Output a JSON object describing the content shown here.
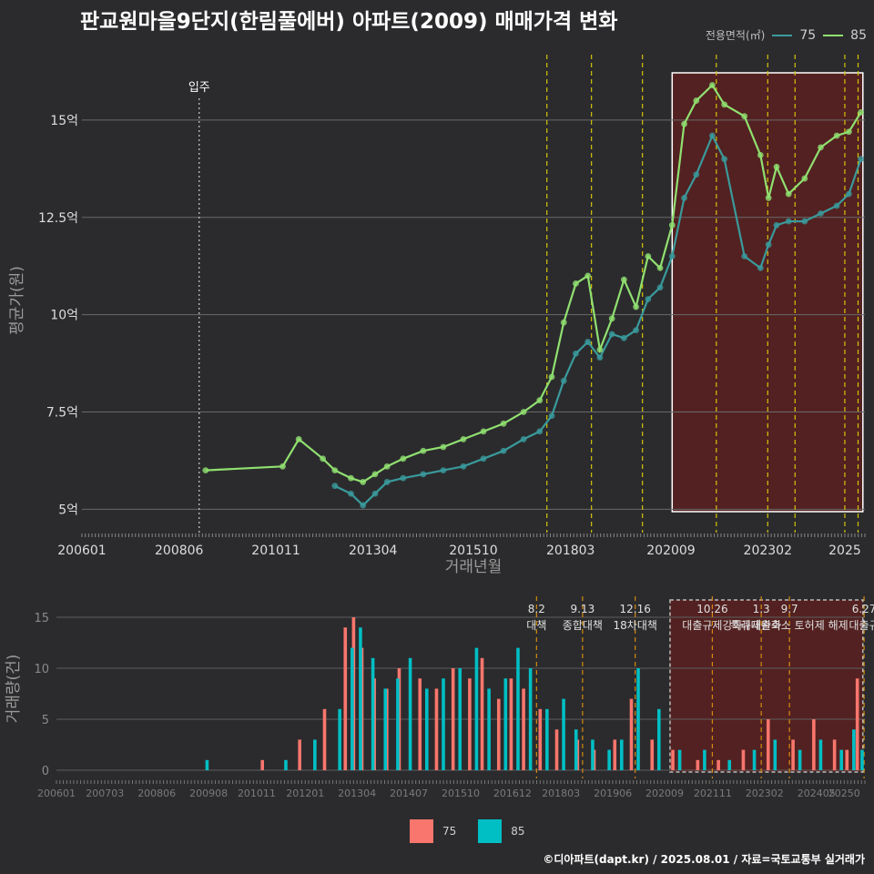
{
  "title": "판교원마을9단지(한림풀에버) 아파트(2009) 매매가격 변화",
  "credit": "©디아파트(dapt.kr) / 2025.08.01 / 자료=국토교통부 실거래가",
  "legend_top": {
    "title": "전용면적(㎡)",
    "items": [
      {
        "label": "75",
        "color": "#3a9a9c"
      },
      {
        "label": "85",
        "color": "#90e070"
      }
    ]
  },
  "legend_bottom": {
    "items": [
      {
        "label": "75",
        "color": "#f8766d"
      },
      {
        "label": "85",
        "color": "#00bfc4"
      }
    ]
  },
  "chart_data": [
    {
      "type": "line",
      "title": "판교원마을9단지(한림풀에버) 아파트(2009) 매매가격 변화",
      "xlabel": "거래년월",
      "ylabel": "평균가(원)",
      "xlim": [
        2006.0,
        2025.5
      ],
      "ylim": [
        4.4,
        16.8
      ],
      "yticks": [
        5,
        7.5,
        10,
        12.5,
        15
      ],
      "ytick_labels": [
        "5억",
        "7.5억",
        "10억",
        "12.5억",
        "15억"
      ],
      "xticks": [
        2006.0,
        2008.42,
        2010.83,
        2013.25,
        2015.75,
        2018.17,
        2020.67,
        2023.08,
        2025.0
      ],
      "xtick_labels": [
        "200601",
        "200806",
        "201011",
        "201304",
        "201510",
        "201803",
        "202009",
        "202302",
        "2025"
      ],
      "vlines_policy": [
        2017.58,
        2018.69,
        2019.96,
        2021.8,
        2023.08,
        2023.76,
        2025.0,
        2025.33
      ],
      "vline_occupancy": {
        "x": 2008.92,
        "label": "입주"
      },
      "highlight_x": [
        2020.7,
        2025.45
      ],
      "series": [
        {
          "name": "85",
          "color": "#90e070",
          "x": [
            2009.08,
            2011.0,
            2011.4,
            2012.0,
            2012.3,
            2012.7,
            2013.0,
            2013.3,
            2013.6,
            2014.0,
            2014.5,
            2015.0,
            2015.5,
            2016.0,
            2016.5,
            2017.0,
            2017.4,
            2017.7,
            2018.0,
            2018.3,
            2018.6,
            2018.9,
            2019.2,
            2019.5,
            2019.8,
            2020.1,
            2020.4,
            2020.7,
            2021.0,
            2021.3,
            2021.7,
            2022.0,
            2022.5,
            2022.9,
            2023.1,
            2023.3,
            2023.6,
            2024.0,
            2024.4,
            2024.8,
            2025.1,
            2025.4
          ],
          "y": [
            6.0,
            6.1,
            6.8,
            6.3,
            6.0,
            5.8,
            5.7,
            5.9,
            6.1,
            6.3,
            6.5,
            6.6,
            6.8,
            7.0,
            7.2,
            7.5,
            7.8,
            8.4,
            9.8,
            10.8,
            11.0,
            9.1,
            9.9,
            10.9,
            10.2,
            11.5,
            11.2,
            12.3,
            14.9,
            15.5,
            15.9,
            15.4,
            15.1,
            14.1,
            13.0,
            13.8,
            13.1,
            13.5,
            14.3,
            14.6,
            14.7,
            15.2
          ]
        },
        {
          "name": "75",
          "color": "#3a9a9c",
          "x": [
            2012.3,
            2012.7,
            2013.0,
            2013.3,
            2013.6,
            2014.0,
            2014.5,
            2015.0,
            2015.5,
            2016.0,
            2016.5,
            2017.0,
            2017.4,
            2017.7,
            2018.0,
            2018.3,
            2018.6,
            2018.9,
            2019.2,
            2019.5,
            2019.8,
            2020.1,
            2020.4,
            2020.7,
            2021.0,
            2021.3,
            2021.7,
            2022.0,
            2022.5,
            2022.9,
            2023.1,
            2023.3,
            2023.6,
            2024.0,
            2024.4,
            2024.8,
            2025.1,
            2025.4
          ],
          "y": [
            5.6,
            5.4,
            5.1,
            5.4,
            5.7,
            5.8,
            5.9,
            6.0,
            6.1,
            6.3,
            6.5,
            6.8,
            7.0,
            7.4,
            8.3,
            9.0,
            9.3,
            8.9,
            9.5,
            9.4,
            9.6,
            10.4,
            10.7,
            11.5,
            13.0,
            13.6,
            14.6,
            14.0,
            11.5,
            11.2,
            11.8,
            12.3,
            12.4,
            12.4,
            12.6,
            12.8,
            13.1,
            14.0
          ]
        }
      ]
    },
    {
      "type": "bar",
      "xlabel": "",
      "ylabel": "거래량(건)",
      "xlim": [
        2006.0,
        2025.5
      ],
      "ylim": [
        -0.8,
        17.5
      ],
      "yticks": [
        0,
        5,
        10,
        15
      ],
      "ytick_labels": [
        "0",
        "5",
        "10",
        "15"
      ],
      "xticks": [
        2006.0,
        2007.17,
        2008.42,
        2009.67,
        2010.83,
        2012.0,
        2013.25,
        2014.5,
        2015.75,
        2017.0,
        2018.17,
        2019.42,
        2020.67,
        2021.83,
        2023.08,
        2024.33,
        2025.0
      ],
      "xtick_labels": [
        "200601",
        "200703",
        "200806",
        "200908",
        "201011",
        "201201",
        "201304",
        "201407",
        "201510",
        "201612",
        "201803",
        "201906",
        "202009",
        "202111",
        "202302",
        "202405",
        "20250"
      ],
      "highlight_x": [
        2020.8,
        2025.45
      ],
      "events": [
        {
          "x": 2017.58,
          "date": "8.2",
          "label": "대책"
        },
        {
          "x": 2018.69,
          "date": "9.13",
          "label": "종합대책"
        },
        {
          "x": 2019.96,
          "date": "12.16",
          "label": "18차대책"
        },
        {
          "x": 2021.82,
          "date": "10.26",
          "label": "대출규제강화"
        },
        {
          "x": 2023.0,
          "date": "1.3",
          "label": "규제완화"
        },
        {
          "x": 2023.68,
          "date": "9.7",
          "label": "특례대출축소 토허제 해제"
        },
        {
          "x": 2025.48,
          "date": "6.27",
          "label": "대출규"
        }
      ],
      "series": [
        {
          "name": "75",
          "color": "#f8766d",
          "x": [
            2011.0,
            2011.9,
            2012.5,
            2013.0,
            2013.2,
            2013.4,
            2013.7,
            2014.0,
            2014.3,
            2014.8,
            2015.2,
            2015.6,
            2016.0,
            2016.3,
            2016.7,
            2017.0,
            2017.3,
            2017.7,
            2018.1,
            2018.6,
            2019.0,
            2019.5,
            2019.9,
            2020.4,
            2020.9,
            2021.5,
            2022.0,
            2022.6,
            2023.2,
            2023.8,
            2024.3,
            2024.8,
            2025.1,
            2025.35
          ],
          "y": [
            1,
            3,
            6,
            14,
            15,
            12,
            9,
            8,
            10,
            9,
            8,
            10,
            9,
            11,
            7,
            9,
            8,
            6,
            4,
            3,
            2,
            3,
            7,
            3,
            2,
            1,
            1,
            2,
            5,
            3,
            5,
            3,
            2,
            9
          ]
        },
        {
          "name": "85",
          "color": "#00bfc4",
          "x": [
            2009.6,
            2011.5,
            2012.2,
            2012.8,
            2013.1,
            2013.3,
            2013.6,
            2013.9,
            2014.2,
            2014.5,
            2014.9,
            2015.3,
            2015.7,
            2016.1,
            2016.4,
            2016.8,
            2017.1,
            2017.4,
            2017.8,
            2018.2,
            2018.5,
            2018.9,
            2019.3,
            2019.6,
            2020.0,
            2020.5,
            2021.0,
            2021.6,
            2022.2,
            2022.8,
            2023.3,
            2023.9,
            2024.4,
            2024.9,
            2025.2,
            2025.4
          ],
          "y": [
            1,
            1,
            3,
            6,
            12,
            14,
            11,
            8,
            9,
            11,
            8,
            9,
            10,
            12,
            8,
            9,
            12,
            10,
            6,
            7,
            4,
            3,
            2,
            3,
            10,
            6,
            2,
            2,
            1,
            2,
            3,
            2,
            3,
            2,
            4,
            2
          ]
        }
      ]
    }
  ]
}
